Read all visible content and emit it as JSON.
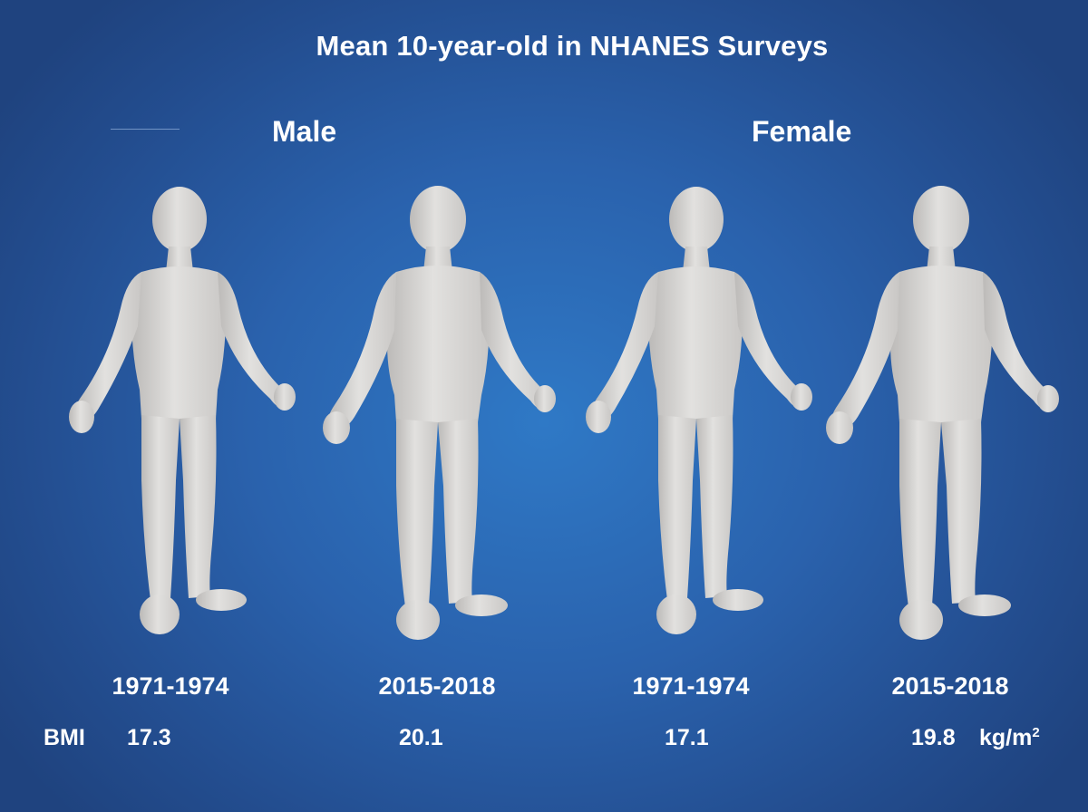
{
  "title": "Mean 10-year-old in NHANES Surveys",
  "groups": [
    {
      "label": "Male"
    },
    {
      "label": "Female"
    }
  ],
  "figures": [
    {
      "sex": "Male",
      "period": "1971-1974",
      "bmi": "17.3"
    },
    {
      "sex": "Male",
      "period": "2015-2018",
      "bmi": "20.1"
    },
    {
      "sex": "Female",
      "period": "1971-1974",
      "bmi": "17.1"
    },
    {
      "sex": "Female",
      "period": "2015-2018",
      "bmi": "19.8"
    }
  ],
  "bmi_label": "BMI",
  "unit": {
    "base": "kg/m",
    "exponent": "2"
  },
  "colors": {
    "background": "#2a62ad",
    "figure": "#d8d7d5",
    "text": "#ffffff"
  },
  "icons": {
    "figure": "child-body-model"
  }
}
